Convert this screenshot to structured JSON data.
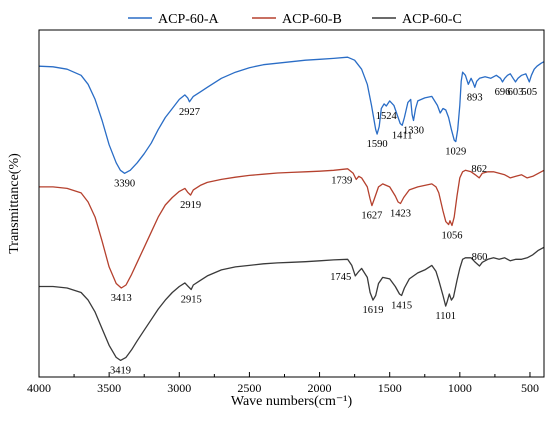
{
  "chart_data": {
    "type": "line",
    "title": "",
    "xlabel": "Wave numbers(cm⁻¹)",
    "ylabel": "Transmittance(%)",
    "xlim": [
      4000,
      400
    ],
    "x_reversed": true,
    "x_ticks": [
      4000,
      3500,
      3000,
      2500,
      2000,
      1500,
      1000,
      500
    ],
    "y_ticks_shown": false,
    "legend_position": "top-center",
    "series": [
      {
        "name": "ACP-60-A",
        "color": "#2a6dc6",
        "points": [
          [
            4000,
            83
          ],
          [
            3900,
            82.8
          ],
          [
            3800,
            82
          ],
          [
            3700,
            80
          ],
          [
            3650,
            77
          ],
          [
            3600,
            72
          ],
          [
            3550,
            65
          ],
          [
            3500,
            57
          ],
          [
            3450,
            51
          ],
          [
            3420,
            48.5
          ],
          [
            3390,
            47.5
          ],
          [
            3350,
            48.5
          ],
          [
            3300,
            51
          ],
          [
            3250,
            54
          ],
          [
            3200,
            57.5
          ],
          [
            3150,
            62
          ],
          [
            3100,
            66
          ],
          [
            3050,
            69
          ],
          [
            3000,
            72
          ],
          [
            2960,
            73.5
          ],
          [
            2940,
            72.5
          ],
          [
            2927,
            71.2
          ],
          [
            2900,
            73
          ],
          [
            2850,
            74.5
          ],
          [
            2800,
            76
          ],
          [
            2700,
            79
          ],
          [
            2600,
            81
          ],
          [
            2500,
            82.5
          ],
          [
            2400,
            83.5
          ],
          [
            2300,
            84
          ],
          [
            2200,
            84.5
          ],
          [
            2100,
            85
          ],
          [
            2000,
            85.3
          ],
          [
            1900,
            85.6
          ],
          [
            1800,
            86
          ],
          [
            1750,
            85
          ],
          [
            1700,
            82
          ],
          [
            1660,
            77
          ],
          [
            1630,
            70
          ],
          [
            1600,
            62
          ],
          [
            1590,
            60.5
          ],
          [
            1575,
            63
          ],
          [
            1560,
            69
          ],
          [
            1540,
            70.5
          ],
          [
            1524,
            69.8
          ],
          [
            1500,
            71.5
          ],
          [
            1470,
            70
          ],
          [
            1440,
            66
          ],
          [
            1425,
            64
          ],
          [
            1411,
            63.4
          ],
          [
            1395,
            66
          ],
          [
            1370,
            71
          ],
          [
            1350,
            72
          ],
          [
            1340,
            67
          ],
          [
            1330,
            65
          ],
          [
            1315,
            69
          ],
          [
            1300,
            71.5
          ],
          [
            1250,
            72.5
          ],
          [
            1200,
            73
          ],
          [
            1160,
            70
          ],
          [
            1140,
            67.5
          ],
          [
            1120,
            69
          ],
          [
            1100,
            68.5
          ],
          [
            1080,
            66
          ],
          [
            1060,
            62
          ],
          [
            1040,
            58.5
          ],
          [
            1029,
            58
          ],
          [
            1015,
            62
          ],
          [
            1000,
            70
          ],
          [
            990,
            78
          ],
          [
            980,
            81
          ],
          [
            960,
            80
          ],
          [
            940,
            77
          ],
          [
            920,
            79
          ],
          [
            905,
            77.5
          ],
          [
            893,
            76
          ],
          [
            880,
            78
          ],
          [
            860,
            79
          ],
          [
            820,
            79.5
          ],
          [
            780,
            79
          ],
          [
            740,
            80
          ],
          [
            710,
            79
          ],
          [
            696,
            77.8
          ],
          [
            680,
            79
          ],
          [
            660,
            80
          ],
          [
            640,
            80.5
          ],
          [
            620,
            79
          ],
          [
            603,
            77.8
          ],
          [
            585,
            79
          ],
          [
            560,
            80
          ],
          [
            530,
            80.5
          ],
          [
            505,
            77.8
          ],
          [
            490,
            80
          ],
          [
            470,
            82
          ],
          [
            450,
            83
          ],
          [
            420,
            84
          ],
          [
            400,
            84.5
          ]
        ]
      },
      {
        "name": "ACP-60-B",
        "color": "#b5412e",
        "points": [
          [
            4000,
            43
          ],
          [
            3900,
            43
          ],
          [
            3800,
            42.5
          ],
          [
            3700,
            41
          ],
          [
            3650,
            38
          ],
          [
            3600,
            33
          ],
          [
            3550,
            25
          ],
          [
            3500,
            16.5
          ],
          [
            3450,
            11
          ],
          [
            3413,
            9.5
          ],
          [
            3380,
            10.5
          ],
          [
            3340,
            14
          ],
          [
            3300,
            18
          ],
          [
            3250,
            23
          ],
          [
            3200,
            28
          ],
          [
            3150,
            33
          ],
          [
            3100,
            37
          ],
          [
            3050,
            39.5
          ],
          [
            3000,
            41.5
          ],
          [
            2960,
            42.5
          ],
          [
            2940,
            41.2
          ],
          [
            2919,
            40.3
          ],
          [
            2900,
            42
          ],
          [
            2850,
            43.5
          ],
          [
            2800,
            44.5
          ],
          [
            2700,
            45.5
          ],
          [
            2600,
            46.2
          ],
          [
            2500,
            46.8
          ],
          [
            2400,
            47.2
          ],
          [
            2300,
            47.6
          ],
          [
            2200,
            47.8
          ],
          [
            2100,
            48
          ],
          [
            2000,
            48.2
          ],
          [
            1900,
            48.5
          ],
          [
            1800,
            49
          ],
          [
            1760,
            47.5
          ],
          [
            1739,
            45.5
          ],
          [
            1720,
            46.5
          ],
          [
            1700,
            46
          ],
          [
            1660,
            43
          ],
          [
            1640,
            39
          ],
          [
            1627,
            36.8
          ],
          [
            1610,
            39
          ],
          [
            1580,
            43
          ],
          [
            1550,
            44
          ],
          [
            1500,
            43
          ],
          [
            1460,
            40
          ],
          [
            1440,
            38
          ],
          [
            1423,
            37.5
          ],
          [
            1400,
            39.5
          ],
          [
            1360,
            42
          ],
          [
            1300,
            43
          ],
          [
            1250,
            43.5
          ],
          [
            1200,
            44
          ],
          [
            1170,
            43
          ],
          [
            1150,
            41
          ],
          [
            1120,
            35
          ],
          [
            1100,
            31.5
          ],
          [
            1080,
            30.5
          ],
          [
            1070,
            31.8
          ],
          [
            1056,
            30.2
          ],
          [
            1040,
            33
          ],
          [
            1020,
            40
          ],
          [
            1000,
            46
          ],
          [
            980,
            48
          ],
          [
            960,
            48.5
          ],
          [
            920,
            48
          ],
          [
            890,
            47
          ],
          [
            862,
            46
          ],
          [
            840,
            47.5
          ],
          [
            800,
            48
          ],
          [
            760,
            48
          ],
          [
            720,
            47.5
          ],
          [
            680,
            47
          ],
          [
            640,
            46
          ],
          [
            600,
            46.5
          ],
          [
            560,
            47
          ],
          [
            520,
            46
          ],
          [
            480,
            46.5
          ],
          [
            440,
            47.5
          ],
          [
            400,
            48.5
          ]
        ]
      },
      {
        "name": "ACP-60-C",
        "color": "#3a3a3a",
        "points": [
          [
            4000,
            10
          ],
          [
            3900,
            10
          ],
          [
            3800,
            9.5
          ],
          [
            3700,
            8
          ],
          [
            3650,
            5.5
          ],
          [
            3600,
            1.5
          ],
          [
            3550,
            -4
          ],
          [
            3500,
            -9.5
          ],
          [
            3450,
            -13.5
          ],
          [
            3419,
            -14.5
          ],
          [
            3380,
            -13.5
          ],
          [
            3340,
            -11
          ],
          [
            3300,
            -8
          ],
          [
            3250,
            -4.5
          ],
          [
            3200,
            -1
          ],
          [
            3150,
            2.5
          ],
          [
            3100,
            5.5
          ],
          [
            3050,
            8
          ],
          [
            3000,
            10
          ],
          [
            2960,
            11.2
          ],
          [
            2940,
            10.2
          ],
          [
            2915,
            9
          ],
          [
            2900,
            10.5
          ],
          [
            2850,
            12
          ],
          [
            2800,
            13.5
          ],
          [
            2700,
            15.5
          ],
          [
            2600,
            16.5
          ],
          [
            2500,
            17
          ],
          [
            2400,
            17.5
          ],
          [
            2300,
            17.8
          ],
          [
            2200,
            18
          ],
          [
            2100,
            18.2
          ],
          [
            2000,
            18.5
          ],
          [
            1900,
            18.8
          ],
          [
            1800,
            19
          ],
          [
            1770,
            17
          ],
          [
            1745,
            13.5
          ],
          [
            1720,
            15
          ],
          [
            1700,
            16
          ],
          [
            1660,
            13
          ],
          [
            1640,
            8
          ],
          [
            1619,
            5.5
          ],
          [
            1600,
            7
          ],
          [
            1580,
            11
          ],
          [
            1550,
            13
          ],
          [
            1500,
            12.5
          ],
          [
            1460,
            10
          ],
          [
            1430,
            7.5
          ],
          [
            1415,
            7
          ],
          [
            1395,
            9.5
          ],
          [
            1360,
            12.5
          ],
          [
            1300,
            14.5
          ],
          [
            1250,
            15.5
          ],
          [
            1200,
            17
          ],
          [
            1170,
            15
          ],
          [
            1150,
            12
          ],
          [
            1120,
            7
          ],
          [
            1101,
            3.5
          ],
          [
            1090,
            5
          ],
          [
            1075,
            7.5
          ],
          [
            1060,
            5.5
          ],
          [
            1045,
            6.5
          ],
          [
            1020,
            12
          ],
          [
            1000,
            16
          ],
          [
            980,
            19
          ],
          [
            960,
            19.5
          ],
          [
            920,
            19.5
          ],
          [
            890,
            18
          ],
          [
            860,
            16.8
          ],
          [
            840,
            18
          ],
          [
            800,
            19
          ],
          [
            760,
            19.5
          ],
          [
            720,
            19
          ],
          [
            680,
            19.5
          ],
          [
            640,
            18.5
          ],
          [
            600,
            19
          ],
          [
            560,
            19
          ],
          [
            520,
            19.5
          ],
          [
            480,
            20.5
          ],
          [
            440,
            22
          ],
          [
            400,
            23
          ]
        ]
      }
    ],
    "annotations": [
      {
        "series": "ACP-60-A",
        "x": 3390,
        "label": "3390",
        "where": "below"
      },
      {
        "series": "ACP-60-A",
        "x": 2927,
        "label": "2927",
        "where": "below"
      },
      {
        "series": "ACP-60-A",
        "x": 1590,
        "label": "1590",
        "where": "below"
      },
      {
        "series": "ACP-60-A",
        "x": 1524,
        "label": "1524",
        "where": "below"
      },
      {
        "series": "ACP-60-A",
        "x": 1411,
        "label": "1411",
        "where": "below"
      },
      {
        "series": "ACP-60-A",
        "x": 1330,
        "label": "1330",
        "where": "below"
      },
      {
        "series": "ACP-60-A",
        "x": 1029,
        "label": "1029",
        "where": "below"
      },
      {
        "series": "ACP-60-A",
        "x": 893,
        "label": "893",
        "where": "below"
      },
      {
        "series": "ACP-60-A",
        "x": 696,
        "label": "696",
        "where": "below"
      },
      {
        "series": "ACP-60-A",
        "x": 603,
        "label": "603",
        "where": "below"
      },
      {
        "series": "ACP-60-A",
        "x": 505,
        "label": "505",
        "where": "below"
      },
      {
        "series": "ACP-60-B",
        "x": 3413,
        "label": "3413",
        "where": "below"
      },
      {
        "series": "ACP-60-B",
        "x": 2919,
        "label": "2919",
        "where": "below"
      },
      {
        "series": "ACP-60-B",
        "x": 1739,
        "label": "1739",
        "where": "left"
      },
      {
        "series": "ACP-60-B",
        "x": 1627,
        "label": "1627",
        "where": "below"
      },
      {
        "series": "ACP-60-B",
        "x": 1423,
        "label": "1423",
        "where": "below"
      },
      {
        "series": "ACP-60-B",
        "x": 1056,
        "label": "1056",
        "where": "below"
      },
      {
        "series": "ACP-60-B",
        "x": 862,
        "label": "862",
        "where": "above"
      },
      {
        "series": "ACP-60-C",
        "x": 3419,
        "label": "3419",
        "where": "below"
      },
      {
        "series": "ACP-60-C",
        "x": 2915,
        "label": "2915",
        "where": "below"
      },
      {
        "series": "ACP-60-C",
        "x": 1745,
        "label": "1745",
        "where": "left"
      },
      {
        "series": "ACP-60-C",
        "x": 1619,
        "label": "1619",
        "where": "below"
      },
      {
        "series": "ACP-60-C",
        "x": 1415,
        "label": "1415",
        "where": "below"
      },
      {
        "series": "ACP-60-C",
        "x": 1101,
        "label": "1101",
        "where": "below"
      },
      {
        "series": "ACP-60-C",
        "x": 860,
        "label": "860",
        "where": "above"
      }
    ]
  }
}
